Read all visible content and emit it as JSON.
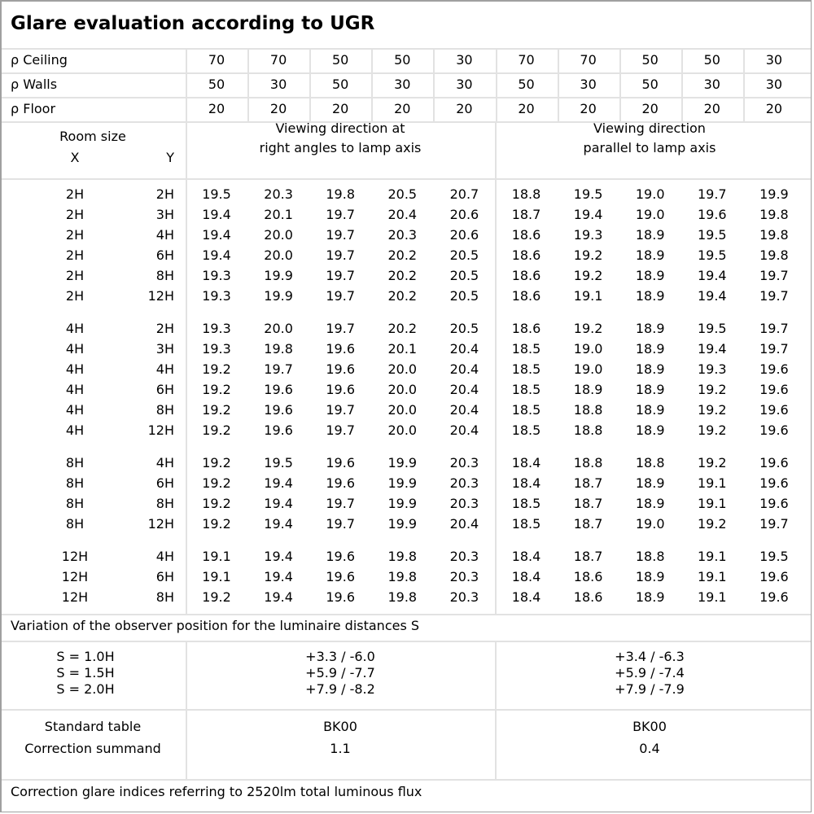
{
  "title": "Glare evaluation according to UGR",
  "reflectance": [
    {
      "label": "ρ Ceiling",
      "values": [
        "70",
        "70",
        "50",
        "50",
        "30",
        "70",
        "70",
        "50",
        "50",
        "30"
      ]
    },
    {
      "label": "ρ Walls",
      "values": [
        "50",
        "30",
        "50",
        "30",
        "30",
        "50",
        "30",
        "50",
        "30",
        "30"
      ]
    },
    {
      "label": "ρ Floor",
      "values": [
        "20",
        "20",
        "20",
        "20",
        "20",
        "20",
        "20",
        "20",
        "20",
        "20"
      ]
    }
  ],
  "header": {
    "room_size": "Room size",
    "x": "X",
    "y": "Y",
    "right_angles": [
      "Viewing direction at",
      "right angles to lamp axis"
    ],
    "parallel": [
      "Viewing direction",
      "parallel to lamp axis"
    ]
  },
  "groups": [
    {
      "rows": [
        {
          "x": "2H",
          "y": "2H",
          "values": [
            "19.5",
            "20.3",
            "19.8",
            "20.5",
            "20.7",
            "18.8",
            "19.5",
            "19.0",
            "19.7",
            "19.9"
          ]
        },
        {
          "x": "2H",
          "y": "3H",
          "values": [
            "19.4",
            "20.1",
            "19.7",
            "20.4",
            "20.6",
            "18.7",
            "19.4",
            "19.0",
            "19.6",
            "19.8"
          ]
        },
        {
          "x": "2H",
          "y": "4H",
          "values": [
            "19.4",
            "20.0",
            "19.7",
            "20.3",
            "20.6",
            "18.6",
            "19.3",
            "18.9",
            "19.5",
            "19.8"
          ]
        },
        {
          "x": "2H",
          "y": "6H",
          "values": [
            "19.4",
            "20.0",
            "19.7",
            "20.2",
            "20.5",
            "18.6",
            "19.2",
            "18.9",
            "19.5",
            "19.8"
          ]
        },
        {
          "x": "2H",
          "y": "8H",
          "values": [
            "19.3",
            "19.9",
            "19.7",
            "20.2",
            "20.5",
            "18.6",
            "19.2",
            "18.9",
            "19.4",
            "19.7"
          ]
        },
        {
          "x": "2H",
          "y": "12H",
          "values": [
            "19.3",
            "19.9",
            "19.7",
            "20.2",
            "20.5",
            "18.6",
            "19.1",
            "18.9",
            "19.4",
            "19.7"
          ]
        }
      ]
    },
    {
      "rows": [
        {
          "x": "4H",
          "y": "2H",
          "values": [
            "19.3",
            "20.0",
            "19.7",
            "20.2",
            "20.5",
            "18.6",
            "19.2",
            "18.9",
            "19.5",
            "19.7"
          ]
        },
        {
          "x": "4H",
          "y": "3H",
          "values": [
            "19.3",
            "19.8",
            "19.6",
            "20.1",
            "20.4",
            "18.5",
            "19.0",
            "18.9",
            "19.4",
            "19.7"
          ]
        },
        {
          "x": "4H",
          "y": "4H",
          "values": [
            "19.2",
            "19.7",
            "19.6",
            "20.0",
            "20.4",
            "18.5",
            "19.0",
            "18.9",
            "19.3",
            "19.6"
          ]
        },
        {
          "x": "4H",
          "y": "6H",
          "values": [
            "19.2",
            "19.6",
            "19.6",
            "20.0",
            "20.4",
            "18.5",
            "18.9",
            "18.9",
            "19.2",
            "19.6"
          ]
        },
        {
          "x": "4H",
          "y": "8H",
          "values": [
            "19.2",
            "19.6",
            "19.7",
            "20.0",
            "20.4",
            "18.5",
            "18.8",
            "18.9",
            "19.2",
            "19.6"
          ]
        },
        {
          "x": "4H",
          "y": "12H",
          "values": [
            "19.2",
            "19.6",
            "19.7",
            "20.0",
            "20.4",
            "18.5",
            "18.8",
            "18.9",
            "19.2",
            "19.6"
          ]
        }
      ]
    },
    {
      "rows": [
        {
          "x": "8H",
          "y": "4H",
          "values": [
            "19.2",
            "19.5",
            "19.6",
            "19.9",
            "20.3",
            "18.4",
            "18.8",
            "18.8",
            "19.2",
            "19.6"
          ]
        },
        {
          "x": "8H",
          "y": "6H",
          "values": [
            "19.2",
            "19.4",
            "19.6",
            "19.9",
            "20.3",
            "18.4",
            "18.7",
            "18.9",
            "19.1",
            "19.6"
          ]
        },
        {
          "x": "8H",
          "y": "8H",
          "values": [
            "19.2",
            "19.4",
            "19.7",
            "19.9",
            "20.3",
            "18.5",
            "18.7",
            "18.9",
            "19.1",
            "19.6"
          ]
        },
        {
          "x": "8H",
          "y": "12H",
          "values": [
            "19.2",
            "19.4",
            "19.7",
            "19.9",
            "20.4",
            "18.5",
            "18.7",
            "19.0",
            "19.2",
            "19.7"
          ]
        }
      ]
    },
    {
      "rows": [
        {
          "x": "12H",
          "y": "4H",
          "values": [
            "19.1",
            "19.4",
            "19.6",
            "19.8",
            "20.3",
            "18.4",
            "18.7",
            "18.8",
            "19.1",
            "19.5"
          ]
        },
        {
          "x": "12H",
          "y": "6H",
          "values": [
            "19.1",
            "19.4",
            "19.6",
            "19.8",
            "20.3",
            "18.4",
            "18.6",
            "18.9",
            "19.1",
            "19.6"
          ]
        },
        {
          "x": "12H",
          "y": "8H",
          "values": [
            "19.2",
            "19.4",
            "19.6",
            "19.8",
            "20.3",
            "18.4",
            "18.6",
            "18.9",
            "19.1",
            "19.6"
          ]
        }
      ]
    }
  ],
  "variation": {
    "caption": "Variation of the observer position for the luminaire distances S",
    "rows": [
      {
        "label": "S = 1.0H",
        "right_angles": "+3.3 / -6.0",
        "parallel": "+3.4 / -6.3"
      },
      {
        "label": "S = 1.5H",
        "right_angles": "+5.9 / -7.7",
        "parallel": "+5.9 / -7.4"
      },
      {
        "label": "S = 2.0H",
        "right_angles": "+7.9 / -8.2",
        "parallel": "+7.9 / -7.9"
      }
    ]
  },
  "standard": {
    "standard_table_label": "Standard table",
    "correction_label": "Correction summand",
    "right_angles": {
      "table": "BK00",
      "correction": "1.1"
    },
    "parallel": {
      "table": "BK00",
      "correction": "0.4"
    }
  },
  "footer": "Correction glare indices referring to 2520lm total luminous flux"
}
